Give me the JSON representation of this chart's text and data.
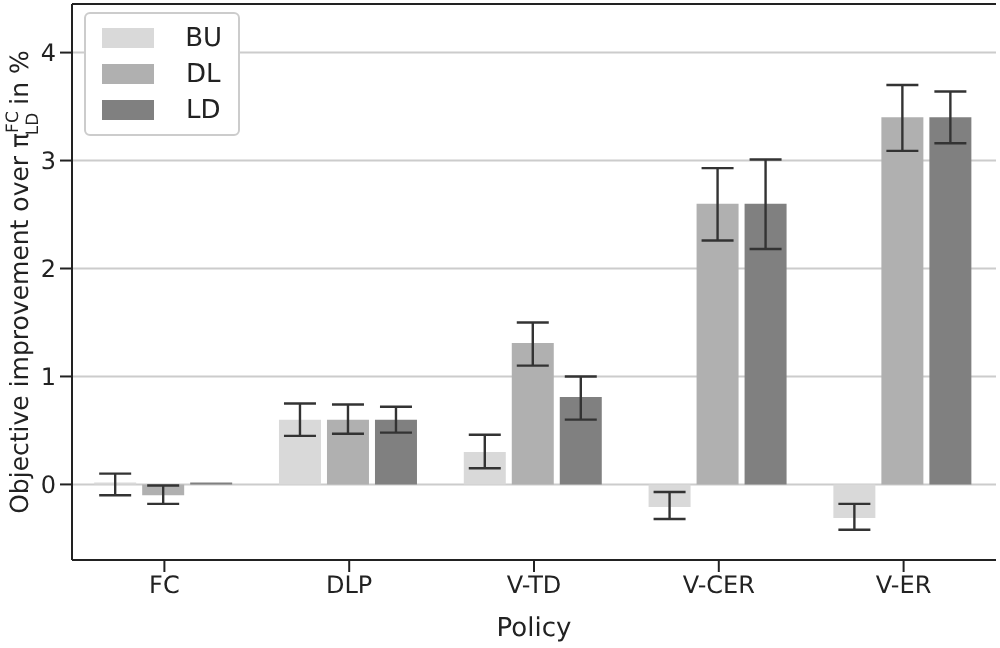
{
  "chart_data": {
    "type": "bar",
    "xlabel": "Policy",
    "ylabel": "Objective improvement over π$^{FC}$$_{LD}$ in %",
    "categories": [
      "FC",
      "DLP",
      "V-TD",
      "V-CER",
      "V-ER"
    ],
    "series": [
      {
        "name": "BU",
        "color": "#d9d9d9",
        "values": [
          0.0,
          0.6,
          0.3,
          -0.21,
          -0.31
        ],
        "errors": [
          [
            -0.1,
            0.1
          ],
          [
            0.45,
            0.75
          ],
          [
            0.15,
            0.46
          ],
          [
            -0.32,
            -0.07
          ],
          [
            -0.42,
            -0.18
          ]
        ]
      },
      {
        "name": "DL",
        "color": "#b0b0b0",
        "values": [
          -0.1,
          0.6,
          1.31,
          2.6,
          3.4
        ],
        "errors": [
          [
            -0.18,
            -0.01
          ],
          [
            0.47,
            0.74
          ],
          [
            1.1,
            1.5
          ],
          [
            2.26,
            2.93
          ],
          [
            3.09,
            3.7
          ]
        ]
      },
      {
        "name": "LD",
        "color": "#808080",
        "values": [
          0.0,
          0.6,
          0.81,
          2.6,
          3.4
        ],
        "errors": [
          null,
          [
            0.48,
            0.72
          ],
          [
            0.6,
            1.0
          ],
          [
            2.18,
            3.01
          ],
          [
            3.16,
            3.64
          ]
        ]
      }
    ],
    "ylim": [
      -0.7,
      4.45
    ],
    "yticks": [
      0,
      1,
      2,
      3,
      4
    ],
    "grid": "y",
    "legend": "top left"
  }
}
